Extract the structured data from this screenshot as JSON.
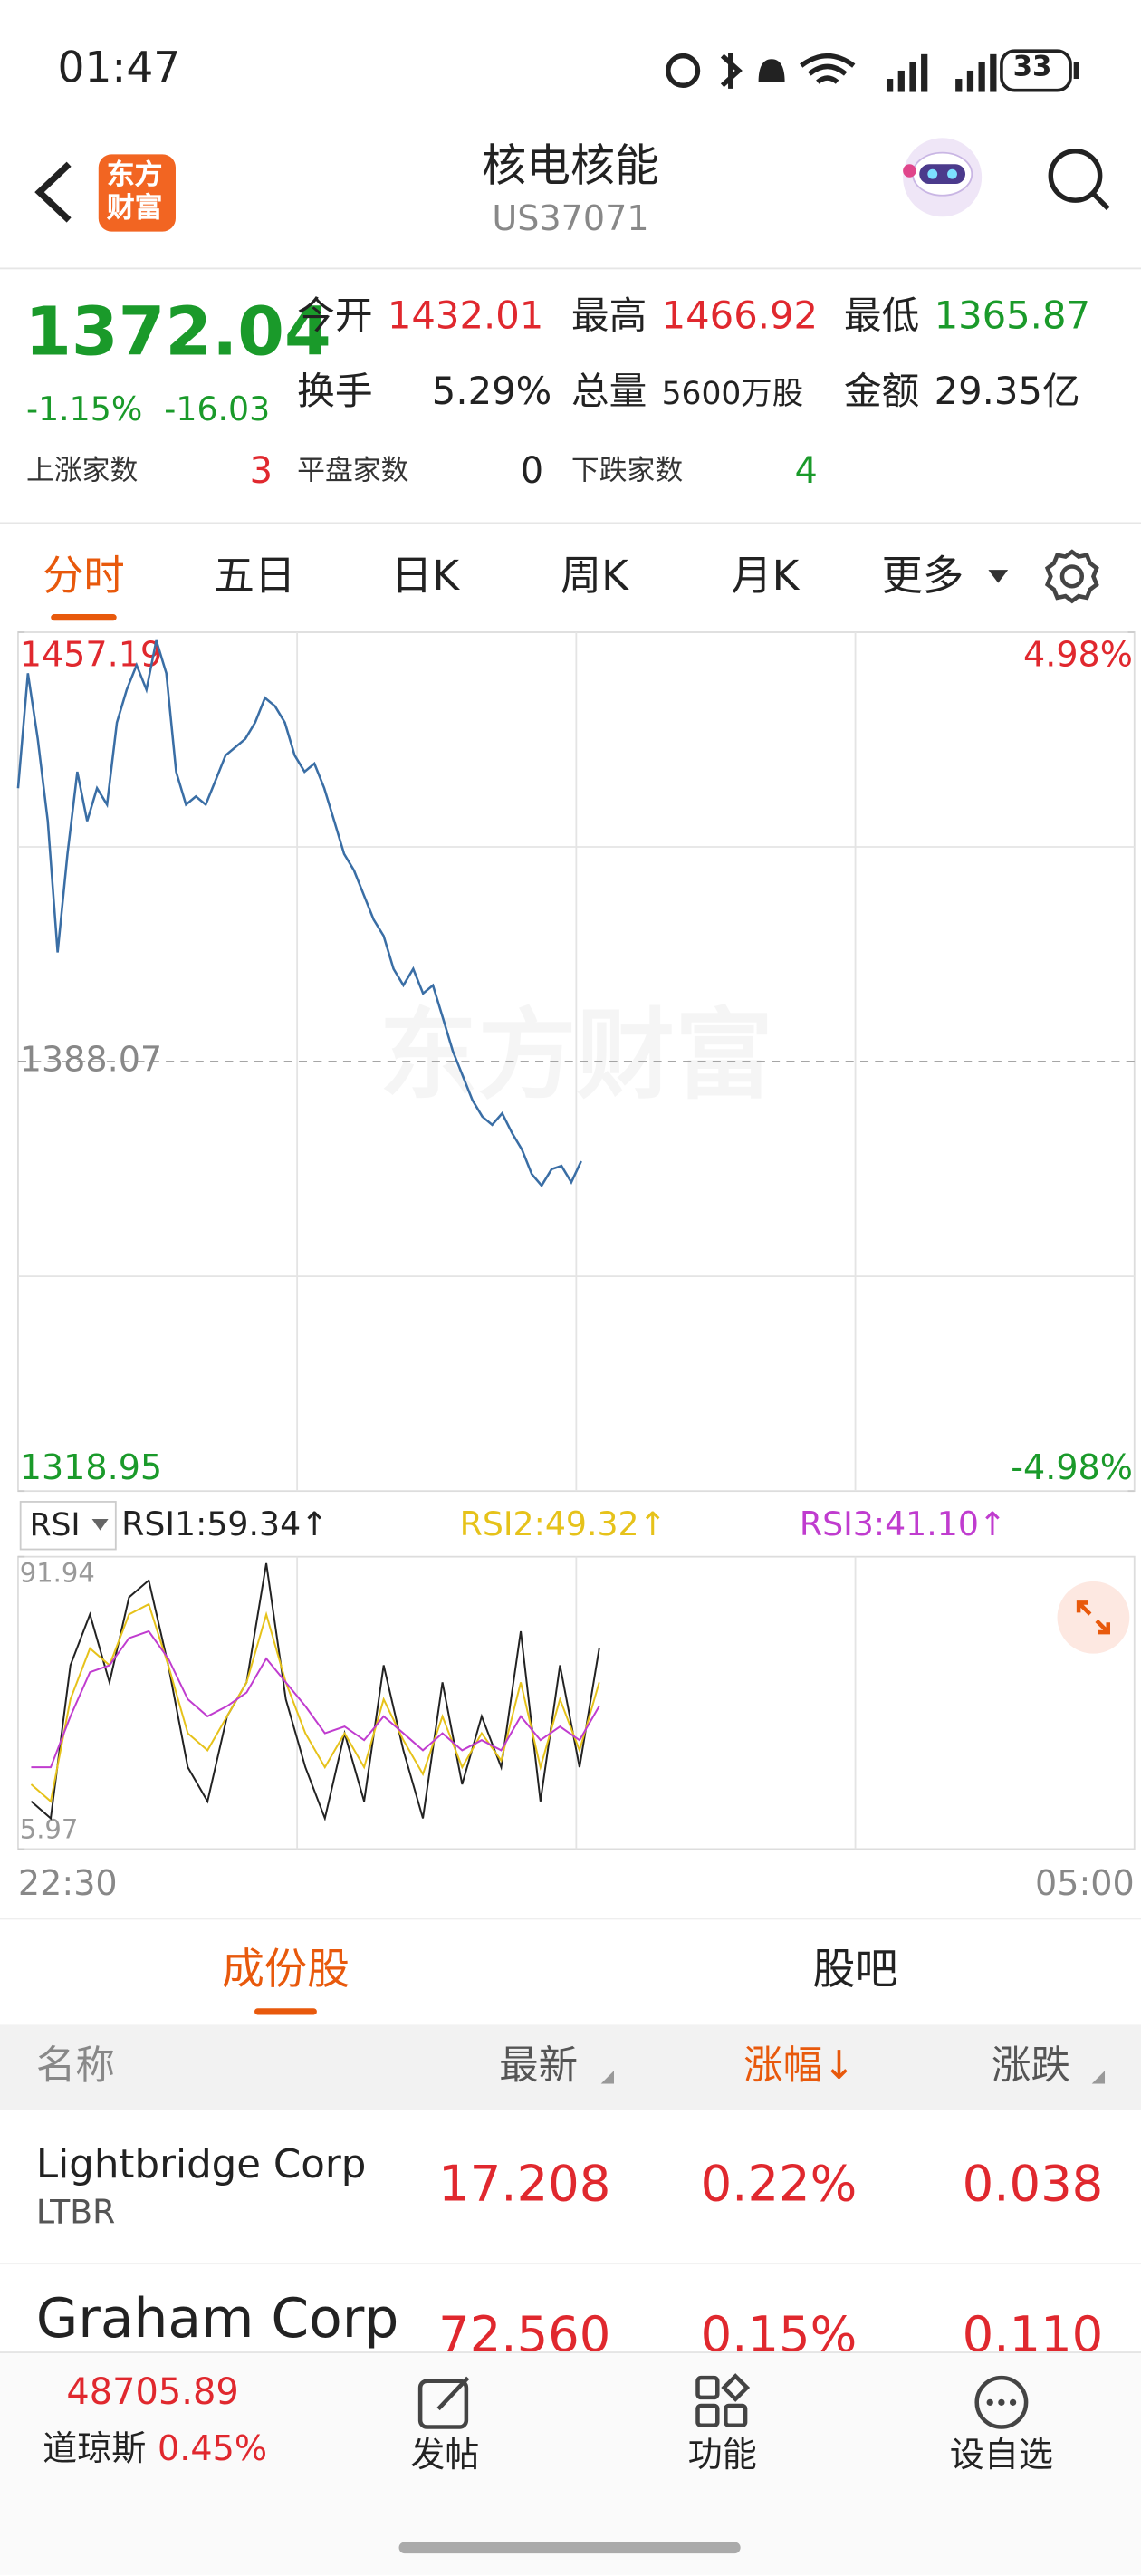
{
  "status_bar": {
    "time": "01:47",
    "battery": "33"
  },
  "header": {
    "logo": [
      "东方",
      "财富"
    ],
    "title": "核电核能",
    "code": "US37071"
  },
  "quote": {
    "price": "1372.04",
    "change_percent": "-1.15%",
    "change": "-16.03",
    "stats": [
      {
        "label": "今开",
        "value": "1432.01"
      },
      {
        "label": "最高",
        "value": "1466.92"
      },
      {
        "label": "最低",
        "value": "1365.87"
      },
      {
        "label": "换手",
        "value": "5.29%"
      },
      {
        "label": "总量",
        "value": "5600万股"
      },
      {
        "label": "金额",
        "value": "29.35亿"
      }
    ],
    "breadth": [
      {
        "label": "上涨家数",
        "value": "3"
      },
      {
        "label": "平盘家数",
        "value": "0"
      },
      {
        "label": "下跌家数",
        "value": "4"
      }
    ]
  },
  "tabs": [
    "分时",
    "五日",
    "日K",
    "周K",
    "月K",
    "更多"
  ],
  "price_chart": {
    "type": "line",
    "watermark": "东方财富",
    "color": "#3a6ea5",
    "ylim": [
      1318.95,
      1457.19
    ],
    "yticks": [
      1318.95,
      1388.07,
      1457.19
    ],
    "y2lim": [
      -4.98,
      4.98
    ],
    "y2ticks": [
      {
        "value": -4.98,
        "label": "-4.98%"
      },
      {
        "value": 4.98,
        "label": "4.98%"
      }
    ],
    "x_labels": [
      "22:30",
      "05:00"
    ],
    "values": [
      1432.08,
      1450.58,
      1440.01,
      1426.8,
      1405.65,
      1421.51,
      1434.72,
      1426.8,
      1432.08,
      1429.44,
      1442.65,
      1447.94,
      1451.9,
      1447.94,
      1455.87,
      1450.58,
      1434.72,
      1429.44,
      1430.76,
      1429.44,
      1433.4,
      1437.37,
      1438.69,
      1440.01,
      1442.65,
      1446.62,
      1445.3,
      1442.65,
      1437.37,
      1434.72,
      1436.05,
      1432.08,
      1426.8,
      1421.51,
      1418.87,
      1414.9,
      1410.94,
      1408.29,
      1403.01,
      1400.37,
      1403.01,
      1399.04,
      1400.37,
      1395.08,
      1389.79,
      1385.83,
      1381.86,
      1379.22,
      1377.89,
      1379.75,
      1376.57,
      1373.93,
      1369.97,
      1368.12,
      1370.76,
      1371.29,
      1368.65,
      1372.04
    ]
  },
  "rsi_chart": {
    "type": "line",
    "indicator": "RSI",
    "ylim": [
      5.97,
      91.94
    ],
    "yticks": [
      5.97,
      91.94
    ],
    "series": [
      {
        "name": "RSI1:59.34↑",
        "color": "#222222",
        "values": [
          20,
          15,
          60,
          75,
          55,
          80,
          85,
          60,
          30,
          20,
          45,
          55,
          90,
          50,
          30,
          15,
          40,
          20,
          60,
          35,
          15,
          55,
          25,
          45,
          30,
          70,
          20,
          60,
          30,
          65
        ]
      },
      {
        "name": "RSI2:49.32↑",
        "color": "#e6c21a",
        "values": [
          25,
          20,
          50,
          65,
          60,
          75,
          78,
          60,
          40,
          35,
          45,
          55,
          75,
          55,
          40,
          30,
          40,
          30,
          50,
          38,
          28,
          45,
          30,
          40,
          32,
          55,
          30,
          50,
          35,
          55
        ]
      },
      {
        "name": "RSI3:41.10↑",
        "color": "#c03ccf",
        "values": [
          30,
          30,
          45,
          58,
          60,
          68,
          70,
          62,
          50,
          45,
          48,
          52,
          62,
          55,
          48,
          40,
          42,
          38,
          45,
          40,
          35,
          40,
          35,
          38,
          35,
          45,
          38,
          42,
          38,
          48
        ]
      }
    ]
  },
  "list_tabs": [
    "成份股",
    "股吧"
  ],
  "table": {
    "columns": [
      "名称",
      "最新",
      "涨幅↓",
      "涨跌"
    ],
    "rows": [
      {
        "name": "Lightbridge Corp",
        "code": "LTBR",
        "last": "17.208",
        "percent": "0.22%",
        "change": "0.038"
      },
      {
        "name": "Graham Corp",
        "last": "72.560",
        "percent": "0.15%",
        "change": "0.110"
      }
    ]
  },
  "bottom_bar": {
    "index_value": "48705.89",
    "index_name": "道琼斯",
    "index_change": "0.45%",
    "buttons": [
      "发帖",
      "功能",
      "设自选"
    ]
  }
}
